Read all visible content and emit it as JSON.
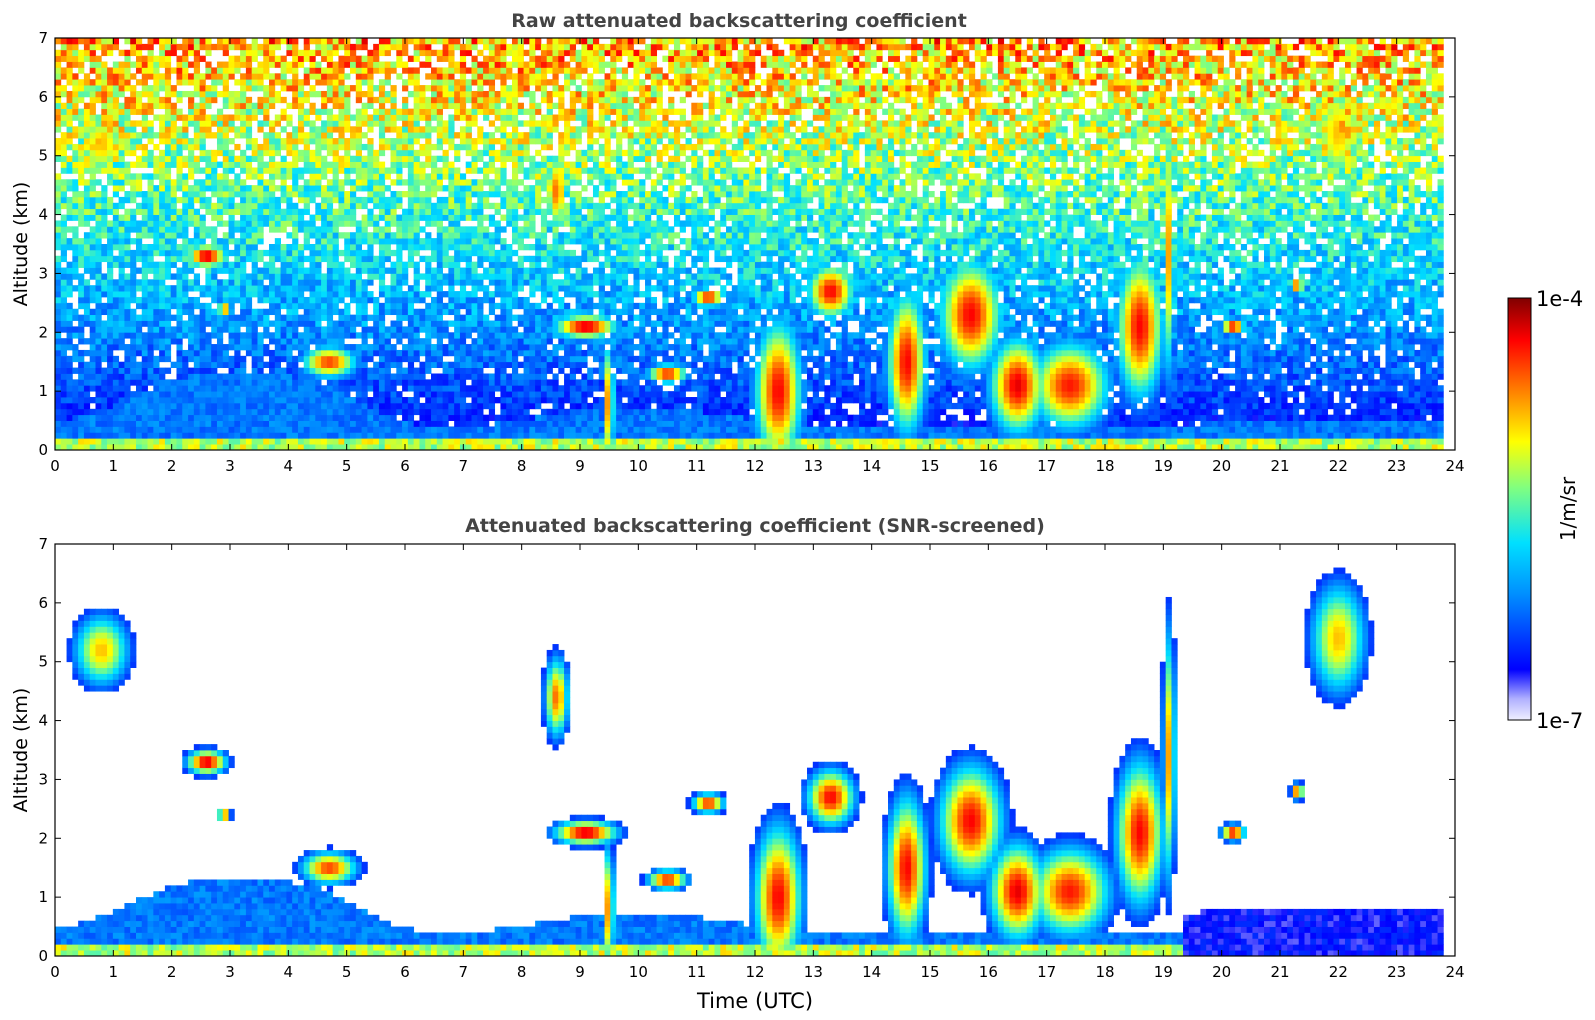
{
  "chart_data": [
    {
      "type": "heatmap",
      "title": "Raw attenuated backscattering coefficient",
      "xlabel": "",
      "ylabel": "Altitude (km)",
      "xlim": [
        0,
        24
      ],
      "ylim": [
        0,
        7
      ],
      "xticks": [
        "0",
        "1",
        "2",
        "3",
        "4",
        "5",
        "6",
        "7",
        "8",
        "9",
        "10",
        "11",
        "12",
        "13",
        "14",
        "15",
        "16",
        "17",
        "18",
        "19",
        "20",
        "21",
        "22",
        "23",
        "24"
      ],
      "yticks": [
        "0",
        "1",
        "2",
        "3",
        "4",
        "5",
        "6",
        "7"
      ],
      "data_end_hour": 23.8,
      "grid": false
    },
    {
      "type": "heatmap",
      "title": "Attenuated backscattering coefficient (SNR-screened)",
      "xlabel": "Time (UTC)",
      "ylabel": "Altitude (km)",
      "xlim": [
        0,
        24
      ],
      "ylim": [
        0,
        7
      ],
      "xticks": [
        "0",
        "1",
        "2",
        "3",
        "4",
        "5",
        "6",
        "7",
        "8",
        "9",
        "10",
        "11",
        "12",
        "13",
        "14",
        "15",
        "16",
        "17",
        "18",
        "19",
        "20",
        "21",
        "22",
        "23",
        "24"
      ],
      "yticks": [
        "0",
        "1",
        "2",
        "3",
        "4",
        "5",
        "6",
        "7"
      ],
      "data_end_hour": 23.8,
      "grid": false
    }
  ],
  "colorbar": {
    "label": "1/m/sr",
    "max_label": "1e-4",
    "min_label": "1e-7",
    "scale": "log",
    "range": [
      1e-07,
      0.0001
    ],
    "colormap": [
      "#f0f0ff",
      "#0000ff",
      "#00a0ff",
      "#00ffff",
      "#80ff80",
      "#ffff00",
      "#ff8000",
      "#ff0000",
      "#800000"
    ]
  }
}
